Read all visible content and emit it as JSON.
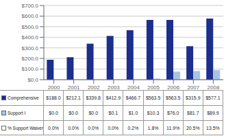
{
  "chart_data": {
    "type": "bar",
    "categories": [
      "2000",
      "2001",
      "2002",
      "2003",
      "2004",
      "2005",
      "2006",
      "2007",
      "2008"
    ],
    "series": [
      {
        "name": "Comprehensive",
        "color": "#1C2F8C",
        "values": [
          188.0,
          212.1,
          339.8,
          412.9,
          466.7,
          563.5,
          563.5,
          315.9,
          577.1
        ],
        "value_labels": [
          "$188.0",
          "$212.1",
          "$339.8",
          "$412.9",
          "$466.7",
          "$563.5",
          "$563.5",
          "$315.9",
          "$577.1"
        ]
      },
      {
        "name": "Support I",
        "color": "#A8C4E0",
        "values": [
          0.0,
          0.0,
          0.0,
          0.1,
          1.0,
          10.3,
          76.0,
          81.7,
          89.9
        ],
        "value_labels": [
          "$0.0",
          "$0.0",
          "$0.0",
          "$0.1",
          "$1.0",
          "$10.3",
          "$76.0",
          "$81.7",
          "$89.9"
        ]
      },
      {
        "name": "% Support Waiver",
        "type": "table",
        "color": "#FFFFFF",
        "values": [
          0.0,
          0.0,
          0.0,
          0.0,
          0.2,
          1.8,
          11.9,
          20.5,
          13.5
        ],
        "value_labels": [
          "0.0%",
          "0.0%",
          "0.0%",
          "0.0%",
          "0.2%",
          "1.8%",
          "11.9%",
          "20.5%",
          "13.5%"
        ]
      }
    ],
    "ylim": [
      0,
      700
    ],
    "yticks": [
      {
        "value": 0,
        "label": "$0.0"
      },
      {
        "value": 100,
        "label": "$100.0"
      },
      {
        "value": 200,
        "label": "$200.0"
      },
      {
        "value": 300,
        "label": "$300.0"
      },
      {
        "value": 400,
        "label": "$400.0"
      },
      {
        "value": 500,
        "label": "$500.0"
      },
      {
        "value": 600,
        "label": "$600.0"
      },
      {
        "value": 700,
        "label": "$700.0"
      }
    ],
    "grid": true
  }
}
